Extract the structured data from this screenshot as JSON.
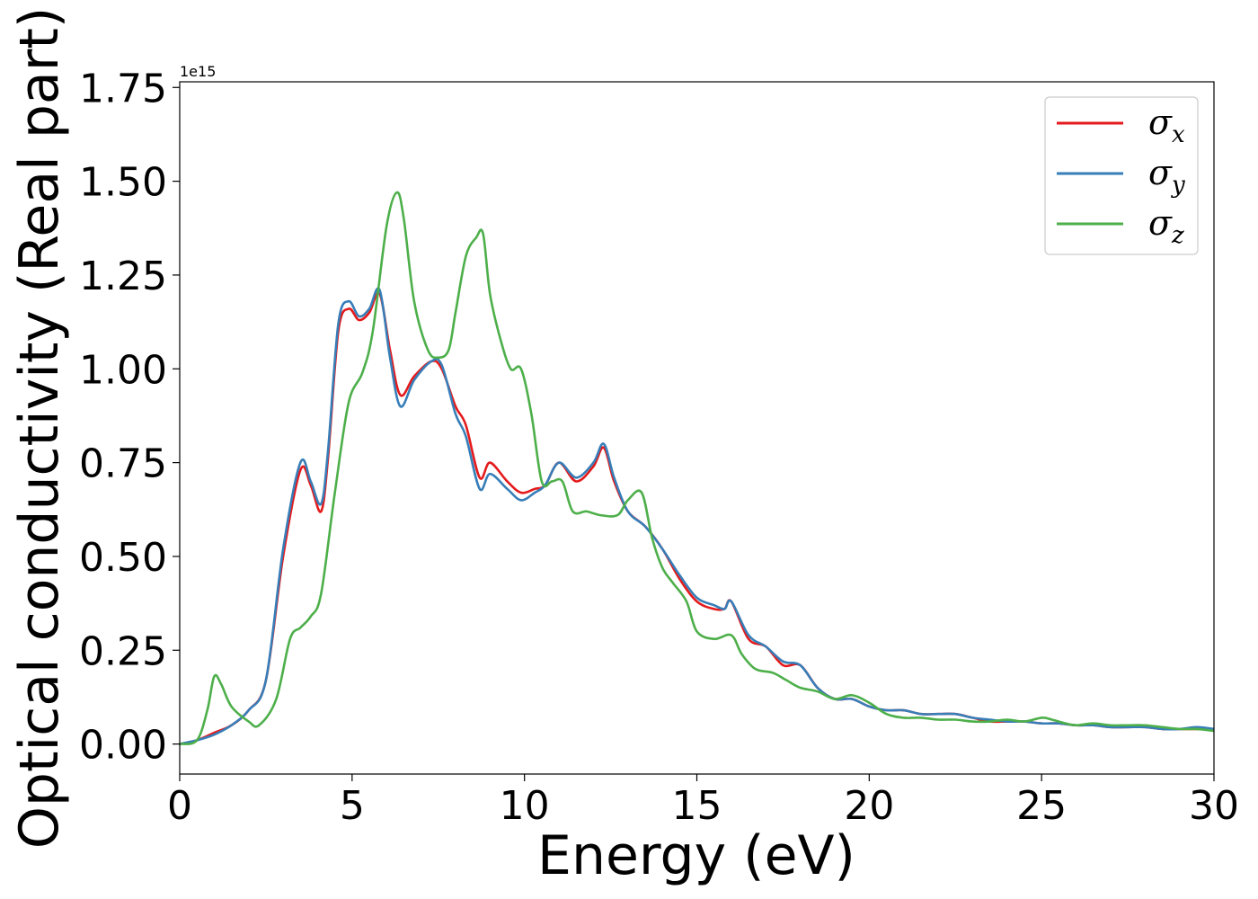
{
  "chart_data": {
    "type": "line",
    "title": "",
    "xlabel": "Energy (eV)",
    "ylabel": "Optical conductivity (Real part)",
    "y_offset_label": "1e15",
    "xlim": [
      0,
      30
    ],
    "ylim": [
      -0.08,
      1.765
    ],
    "xticks": [
      0,
      5,
      10,
      15,
      20,
      25,
      30
    ],
    "xtick_labels": [
      "0",
      "5",
      "10",
      "15",
      "20",
      "25",
      "30"
    ],
    "yticks": [
      0.0,
      0.25,
      0.5,
      0.75,
      1.0,
      1.25,
      1.5,
      1.75
    ],
    "ytick_labels": [
      "0.00",
      "0.25",
      "0.50",
      "0.75",
      "1.00",
      "1.25",
      "1.50",
      "1.75"
    ],
    "grid": false,
    "legend_position": "top-right",
    "series": [
      {
        "name": "σ_x",
        "symbol": "σ",
        "subscript": "x",
        "color": "#e41a1c",
        "x": [
          0,
          0.5,
          1.0,
          1.5,
          2.0,
          2.5,
          3.0,
          3.5,
          3.8,
          4.1,
          4.3,
          4.6,
          4.9,
          5.2,
          5.5,
          5.8,
          6.1,
          6.4,
          6.8,
          7.3,
          7.6,
          8.0,
          8.3,
          8.7,
          9.0,
          9.5,
          9.9,
          10.3,
          10.6,
          11.0,
          11.5,
          12.0,
          12.3,
          12.6,
          13.0,
          13.5,
          14.0,
          14.5,
          15.0,
          15.5,
          15.8,
          16.0,
          16.5,
          17.0,
          17.5,
          18.0,
          18.5,
          19.0,
          19.5,
          20.0,
          20.5,
          21.0,
          21.5,
          22.0,
          22.5,
          23.0,
          23.5,
          24.0,
          24.5,
          25.0,
          25.5,
          26.0,
          26.5,
          27.0,
          27.5,
          28.0,
          28.5,
          29.0,
          29.5,
          30.0
        ],
        "values": [
          0.0,
          0.01,
          0.03,
          0.05,
          0.09,
          0.17,
          0.5,
          0.73,
          0.69,
          0.62,
          0.76,
          1.1,
          1.16,
          1.13,
          1.15,
          1.2,
          1.05,
          0.93,
          0.98,
          1.02,
          1.0,
          0.9,
          0.85,
          0.71,
          0.75,
          0.7,
          0.67,
          0.68,
          0.69,
          0.75,
          0.7,
          0.74,
          0.79,
          0.7,
          0.62,
          0.58,
          0.52,
          0.44,
          0.38,
          0.36,
          0.36,
          0.38,
          0.28,
          0.26,
          0.21,
          0.21,
          0.15,
          0.12,
          0.12,
          0.1,
          0.09,
          0.09,
          0.08,
          0.08,
          0.08,
          0.07,
          0.06,
          0.06,
          0.06,
          0.055,
          0.055,
          0.05,
          0.05,
          0.045,
          0.045,
          0.045,
          0.04,
          0.04,
          0.04,
          0.04
        ]
      },
      {
        "name": "σ_y",
        "symbol": "σ",
        "subscript": "y",
        "color": "#377eb8",
        "x": [
          0,
          0.5,
          1.0,
          1.5,
          2.0,
          2.5,
          3.0,
          3.5,
          3.8,
          4.1,
          4.3,
          4.6,
          4.9,
          5.2,
          5.5,
          5.8,
          6.1,
          6.4,
          6.8,
          7.3,
          7.6,
          8.0,
          8.3,
          8.7,
          9.0,
          9.5,
          9.9,
          10.3,
          10.6,
          11.0,
          11.5,
          12.0,
          12.3,
          12.6,
          13.0,
          13.5,
          14.0,
          14.5,
          15.0,
          15.5,
          15.8,
          16.0,
          16.5,
          17.0,
          17.5,
          18.0,
          18.5,
          19.0,
          19.5,
          20.0,
          20.5,
          21.0,
          21.5,
          22.0,
          22.5,
          23.0,
          23.5,
          24.0,
          24.5,
          25.0,
          25.5,
          26.0,
          26.5,
          27.0,
          27.5,
          28.0,
          28.5,
          29.0,
          29.5,
          30.0
        ],
        "values": [
          0.0,
          0.01,
          0.025,
          0.05,
          0.09,
          0.17,
          0.52,
          0.75,
          0.7,
          0.64,
          0.78,
          1.12,
          1.18,
          1.14,
          1.16,
          1.21,
          1.03,
          0.9,
          0.97,
          1.02,
          1.01,
          0.88,
          0.82,
          0.68,
          0.72,
          0.68,
          0.65,
          0.67,
          0.69,
          0.75,
          0.71,
          0.75,
          0.8,
          0.71,
          0.62,
          0.58,
          0.52,
          0.45,
          0.39,
          0.37,
          0.36,
          0.38,
          0.29,
          0.26,
          0.22,
          0.21,
          0.15,
          0.12,
          0.12,
          0.1,
          0.09,
          0.09,
          0.08,
          0.08,
          0.08,
          0.07,
          0.065,
          0.06,
          0.06,
          0.055,
          0.055,
          0.05,
          0.05,
          0.045,
          0.045,
          0.045,
          0.04,
          0.04,
          0.045,
          0.04
        ]
      },
      {
        "name": "σ_z",
        "symbol": "σ",
        "subscript": "z",
        "color": "#4daf4a",
        "x": [
          0,
          0.5,
          0.8,
          1.0,
          1.2,
          1.5,
          2.0,
          2.3,
          2.8,
          3.2,
          3.5,
          3.8,
          4.1,
          4.5,
          4.9,
          5.3,
          5.6,
          6.0,
          6.3,
          6.5,
          6.8,
          7.2,
          7.5,
          7.8,
          8.0,
          8.3,
          8.6,
          8.8,
          9.0,
          9.3,
          9.6,
          9.9,
          10.2,
          10.5,
          10.8,
          11.1,
          11.4,
          11.8,
          12.2,
          12.7,
          13.0,
          13.4,
          13.7,
          14.0,
          14.3,
          14.7,
          15.0,
          15.5,
          16.0,
          16.3,
          16.7,
          17.2,
          17.6,
          18.0,
          18.5,
          19.0,
          19.5,
          20.0,
          20.5,
          21.0,
          21.5,
          22.0,
          22.5,
          23.0,
          23.5,
          24.0,
          24.5,
          25.0,
          25.3,
          25.7,
          26.0,
          26.5,
          27.0,
          27.5,
          28.0,
          28.5,
          29.0,
          29.5,
          30.0
        ],
        "values": [
          0.0,
          0.01,
          0.09,
          0.18,
          0.16,
          0.1,
          0.06,
          0.05,
          0.12,
          0.28,
          0.31,
          0.34,
          0.4,
          0.67,
          0.91,
          0.99,
          1.1,
          1.38,
          1.47,
          1.4,
          1.18,
          1.05,
          1.03,
          1.05,
          1.15,
          1.3,
          1.35,
          1.36,
          1.2,
          1.08,
          1.0,
          1.0,
          0.88,
          0.7,
          0.7,
          0.7,
          0.62,
          0.62,
          0.61,
          0.61,
          0.65,
          0.67,
          0.55,
          0.47,
          0.43,
          0.38,
          0.3,
          0.28,
          0.29,
          0.24,
          0.2,
          0.19,
          0.17,
          0.15,
          0.14,
          0.12,
          0.13,
          0.11,
          0.08,
          0.07,
          0.07,
          0.065,
          0.065,
          0.06,
          0.06,
          0.065,
          0.06,
          0.07,
          0.065,
          0.055,
          0.05,
          0.055,
          0.05,
          0.05,
          0.05,
          0.045,
          0.04,
          0.04,
          0.035
        ]
      }
    ]
  }
}
